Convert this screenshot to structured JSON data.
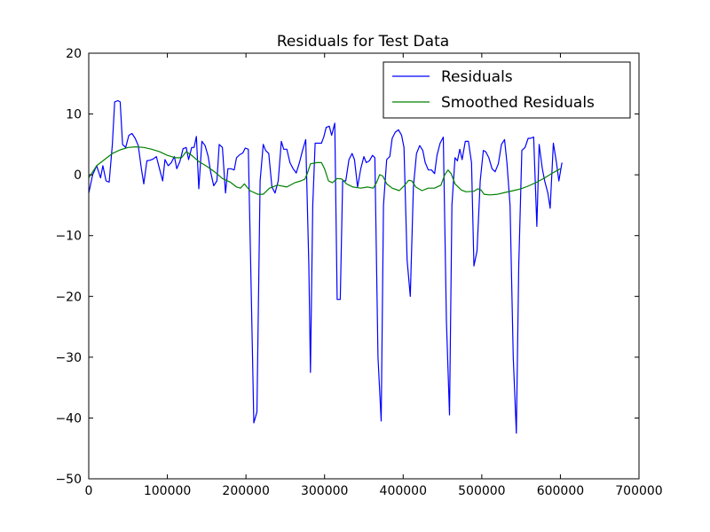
{
  "chart_data": {
    "type": "line",
    "title": "Residuals for Test Data",
    "xlabel": "",
    "ylabel": "",
    "xlim": [
      0,
      700000
    ],
    "ylim": [
      -50,
      20
    ],
    "x_ticks": [
      0,
      100000,
      200000,
      300000,
      400000,
      500000,
      600000,
      700000
    ],
    "x_tick_labels": [
      "0",
      "100000",
      "200000",
      "300000",
      "400000",
      "500000",
      "600000",
      "700000"
    ],
    "y_ticks": [
      20,
      10,
      0,
      -10,
      -20,
      -30,
      -40,
      -50
    ],
    "y_tick_labels": [
      "20",
      "10",
      "0",
      "−10",
      "−20",
      "−30",
      "−40",
      "−50"
    ],
    "grid": false,
    "legend_position": "top-right",
    "series": [
      {
        "name": "Residuals",
        "color": "#0000ff",
        "points": [
          [
            0,
            -3
          ],
          [
            5000,
            0
          ],
          [
            10000,
            1.5
          ],
          [
            15000,
            -0.5
          ],
          [
            18000,
            1.5
          ],
          [
            22000,
            -1
          ],
          [
            26000,
            -1.2
          ],
          [
            30000,
            5
          ],
          [
            33000,
            12
          ],
          [
            37000,
            12.2
          ],
          [
            40000,
            12
          ],
          [
            43000,
            5
          ],
          [
            47000,
            4.5
          ],
          [
            51000,
            6.5
          ],
          [
            55000,
            6.8
          ],
          [
            59000,
            6
          ],
          [
            63000,
            4.8
          ],
          [
            67000,
            1
          ],
          [
            70000,
            -1.5
          ],
          [
            74000,
            2.3
          ],
          [
            78000,
            2.4
          ],
          [
            82000,
            2.6
          ],
          [
            86000,
            3
          ],
          [
            90000,
            1
          ],
          [
            94000,
            -1
          ],
          [
            97000,
            2.5
          ],
          [
            101000,
            1.5
          ],
          [
            105000,
            2
          ],
          [
            109000,
            3
          ],
          [
            112000,
            1
          ],
          [
            116000,
            2.2
          ],
          [
            120000,
            4.3
          ],
          [
            124000,
            4.5
          ],
          [
            127000,
            2.5
          ],
          [
            131000,
            4.5
          ],
          [
            134000,
            4.5
          ],
          [
            137000,
            6.3
          ],
          [
            140000,
            -2.3
          ],
          [
            144000,
            5.5
          ],
          [
            148000,
            4.8
          ],
          [
            152000,
            3
          ],
          [
            155000,
            0.5
          ],
          [
            159000,
            -1.8
          ],
          [
            163000,
            -1
          ],
          [
            166000,
            5
          ],
          [
            170000,
            4.5
          ],
          [
            174000,
            -3
          ],
          [
            177000,
            1
          ],
          [
            181000,
            1
          ],
          [
            185000,
            0.8
          ],
          [
            188000,
            2.8
          ],
          [
            192000,
            3.3
          ],
          [
            196000,
            3.6
          ],
          [
            199000,
            4.4
          ],
          [
            203000,
            4.2
          ],
          [
            206000,
            -15
          ],
          [
            210000,
            -40.8
          ],
          [
            214000,
            -39
          ],
          [
            218000,
            -1
          ],
          [
            222000,
            5
          ],
          [
            225000,
            4
          ],
          [
            229000,
            3.5
          ],
          [
            233000,
            -2
          ],
          [
            237000,
            -3
          ],
          [
            241000,
            -1
          ],
          [
            245000,
            5.5
          ],
          [
            248000,
            4.2
          ],
          [
            252000,
            4.2
          ],
          [
            256000,
            2
          ],
          [
            260000,
            1
          ],
          [
            264000,
            0.3
          ],
          [
            268000,
            2
          ],
          [
            272000,
            4
          ],
          [
            276000,
            5.8
          ],
          [
            280000,
            -15
          ],
          [
            282000,
            -32.5
          ],
          [
            285000,
            -5
          ],
          [
            288000,
            5.2
          ],
          [
            292000,
            5.2
          ],
          [
            296000,
            5.2
          ],
          [
            299000,
            6.2
          ],
          [
            302000,
            7.8
          ],
          [
            306000,
            8
          ],
          [
            309000,
            6.5
          ],
          [
            313000,
            8.5
          ],
          [
            316000,
            -20.5
          ],
          [
            320000,
            -20.5
          ],
          [
            323000,
            -1
          ],
          [
            327000,
            -1
          ],
          [
            331000,
            2.5
          ],
          [
            335000,
            3.5
          ],
          [
            338000,
            2.5
          ],
          [
            342000,
            -2
          ],
          [
            346000,
            1
          ],
          [
            350000,
            3
          ],
          [
            353000,
            2
          ],
          [
            357000,
            2.3
          ],
          [
            361000,
            3.2
          ],
          [
            364000,
            2.8
          ],
          [
            368000,
            -30
          ],
          [
            372000,
            -40.5
          ],
          [
            375000,
            -5
          ],
          [
            379000,
            2.5
          ],
          [
            383000,
            3
          ],
          [
            386000,
            6
          ],
          [
            390000,
            7
          ],
          [
            394000,
            7.4
          ],
          [
            398000,
            6.5
          ],
          [
            401000,
            4.5
          ],
          [
            405000,
            -14
          ],
          [
            409000,
            -20
          ],
          [
            413000,
            -2
          ],
          [
            417000,
            3.5
          ],
          [
            421000,
            4.8
          ],
          [
            425000,
            4
          ],
          [
            428000,
            2
          ],
          [
            432000,
            0.8
          ],
          [
            436000,
            0.8
          ],
          [
            440000,
            0.2
          ],
          [
            443000,
            3.2
          ],
          [
            447000,
            5.2
          ],
          [
            451000,
            6.2
          ],
          [
            455000,
            -24
          ],
          [
            459000,
            -39.5
          ],
          [
            462000,
            -5
          ],
          [
            466000,
            2.8
          ],
          [
            469000,
            2.3
          ],
          [
            472000,
            4.2
          ],
          [
            475000,
            2.5
          ],
          [
            479000,
            5.5
          ],
          [
            483000,
            5.5
          ],
          [
            487000,
            2
          ],
          [
            490000,
            -15
          ],
          [
            494000,
            -12.5
          ],
          [
            498000,
            -1
          ],
          [
            502000,
            4
          ],
          [
            505000,
            3.8
          ],
          [
            509000,
            2.8
          ],
          [
            513000,
            1
          ],
          [
            517000,
            0.5
          ],
          [
            521000,
            1.8
          ],
          [
            525000,
            5
          ],
          [
            529000,
            5.8
          ],
          [
            532000,
            2
          ],
          [
            536000,
            -5
          ],
          [
            540000,
            -30
          ],
          [
            544000,
            -42.5
          ],
          [
            547000,
            -15
          ],
          [
            551000,
            4
          ],
          [
            555000,
            4.5
          ],
          [
            559000,
            6
          ],
          [
            562000,
            6
          ],
          [
            566000,
            6.2
          ],
          [
            570000,
            -8.5
          ],
          [
            573000,
            5
          ],
          [
            577000,
            1
          ],
          [
            580000,
            -1
          ],
          [
            584000,
            -3
          ],
          [
            587000,
            -5.5
          ],
          [
            591000,
            5.2
          ],
          [
            595000,
            2
          ],
          [
            598000,
            -1
          ],
          [
            602000,
            2
          ]
        ]
      },
      {
        "name": "Smoothed Residuals",
        "color": "#008000",
        "points": [
          [
            0,
            -0.5
          ],
          [
            10000,
            1.5
          ],
          [
            20000,
            2.5
          ],
          [
            30000,
            3.5
          ],
          [
            40000,
            4.1
          ],
          [
            50000,
            4.5
          ],
          [
            60000,
            4.6
          ],
          [
            70000,
            4.5
          ],
          [
            80000,
            4.2
          ],
          [
            90000,
            3.8
          ],
          [
            100000,
            3.2
          ],
          [
            110000,
            2.8
          ],
          [
            118000,
            2.8
          ],
          [
            124000,
            3.8
          ],
          [
            130000,
            3.3
          ],
          [
            140000,
            2.2
          ],
          [
            150000,
            1.4
          ],
          [
            160000,
            0.5
          ],
          [
            170000,
            -0.6
          ],
          [
            180000,
            -1.2
          ],
          [
            188000,
            -2
          ],
          [
            193000,
            -2.2
          ],
          [
            198000,
            -1.5
          ],
          [
            205000,
            -2.6
          ],
          [
            215000,
            -3.2
          ],
          [
            222000,
            -3.2
          ],
          [
            230000,
            -2.2
          ],
          [
            240000,
            -1.7
          ],
          [
            252000,
            -2
          ],
          [
            262000,
            -1.3
          ],
          [
            270000,
            -1
          ],
          [
            275000,
            -0.7
          ],
          [
            278000,
            0.2
          ],
          [
            282000,
            1.8
          ],
          [
            290000,
            2
          ],
          [
            296000,
            2
          ],
          [
            300000,
            1
          ],
          [
            305000,
            -1
          ],
          [
            310000,
            -1.3
          ],
          [
            316000,
            -0.6
          ],
          [
            322000,
            -0.7
          ],
          [
            328000,
            -1.5
          ],
          [
            336000,
            -2
          ],
          [
            346000,
            -2.2
          ],
          [
            355000,
            -2
          ],
          [
            362000,
            -2.2
          ],
          [
            366000,
            -1.3
          ],
          [
            370000,
            0
          ],
          [
            374000,
            -0.2
          ],
          [
            379000,
            -1.5
          ],
          [
            386000,
            -2.2
          ],
          [
            395000,
            -2.6
          ],
          [
            402000,
            -1.7
          ],
          [
            407000,
            -0.9
          ],
          [
            411000,
            -1
          ],
          [
            416000,
            -2
          ],
          [
            424000,
            -2.6
          ],
          [
            432000,
            -2.2
          ],
          [
            440000,
            -2.2
          ],
          [
            448000,
            -1.7
          ],
          [
            453000,
            0
          ],
          [
            457000,
            0.8
          ],
          [
            461000,
            0.2
          ],
          [
            466000,
            -1.5
          ],
          [
            474000,
            -2.5
          ],
          [
            480000,
            -2.8
          ],
          [
            490000,
            -2.7
          ],
          [
            495000,
            -2.3
          ],
          [
            499000,
            -2.5
          ],
          [
            503000,
            -3.2
          ],
          [
            510000,
            -3.3
          ],
          [
            520000,
            -3.2
          ],
          [
            530000,
            -2.9
          ],
          [
            540000,
            -2.6
          ],
          [
            550000,
            -2.3
          ],
          [
            560000,
            -1.8
          ],
          [
            570000,
            -1.2
          ],
          [
            580000,
            -0.5
          ],
          [
            590000,
            0.3
          ],
          [
            600000,
            1
          ]
        ]
      }
    ]
  }
}
